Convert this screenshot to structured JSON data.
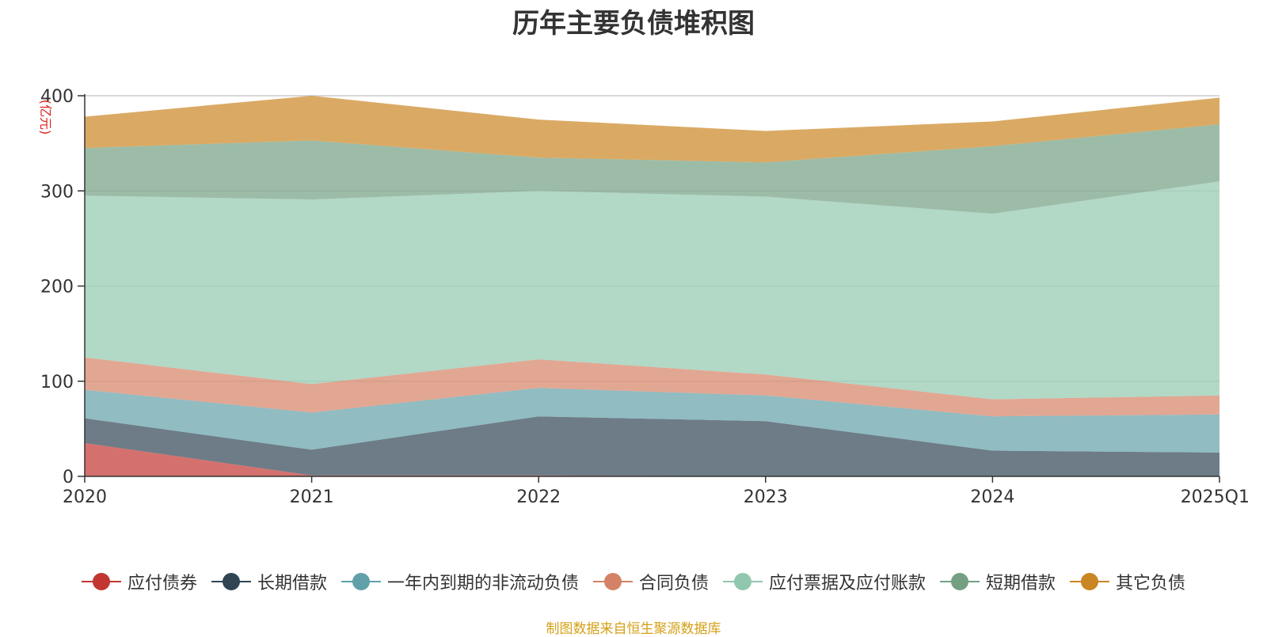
{
  "chart_data": {
    "type": "area",
    "title": "历年主要负债堆积图",
    "unit_label": "亿元",
    "stacked": true,
    "x": [
      "2020",
      "2021",
      "2022",
      "2023",
      "2024",
      "2025Q1"
    ],
    "y_ticks": [
      "0",
      "100",
      "200",
      "300",
      "400"
    ],
    "ylim": [
      0,
      400
    ],
    "grid": true,
    "legend_position": "bottom",
    "series": [
      {
        "name": "应付债券",
        "color": "#c23531",
        "values": [
          35,
          1,
          1,
          0,
          0,
          0
        ]
      },
      {
        "name": "长期借款",
        "color": "#2f4554",
        "values": [
          26,
          27,
          62,
          58,
          27,
          25
        ]
      },
      {
        "name": "一年内到期的非流动负债",
        "color": "#61a0a8",
        "values": [
          30,
          39,
          30,
          27,
          36,
          40
        ]
      },
      {
        "name": "合同负债",
        "color": "#d48265",
        "values": [
          34,
          30,
          30,
          22,
          18,
          20
        ]
      },
      {
        "name": "应付票据及应付账款",
        "color": "#91c7ae",
        "values": [
          170,
          194,
          177,
          187,
          195,
          225
        ]
      },
      {
        "name": "短期借款",
        "color": "#749f83",
        "values": [
          50,
          62,
          35,
          36,
          71,
          60
        ]
      },
      {
        "name": "其它负债",
        "color": "#ca8622",
        "values": [
          33,
          47,
          40,
          33,
          26,
          28
        ]
      }
    ],
    "source_note": "制图数据来自恒生聚源数据库"
  }
}
